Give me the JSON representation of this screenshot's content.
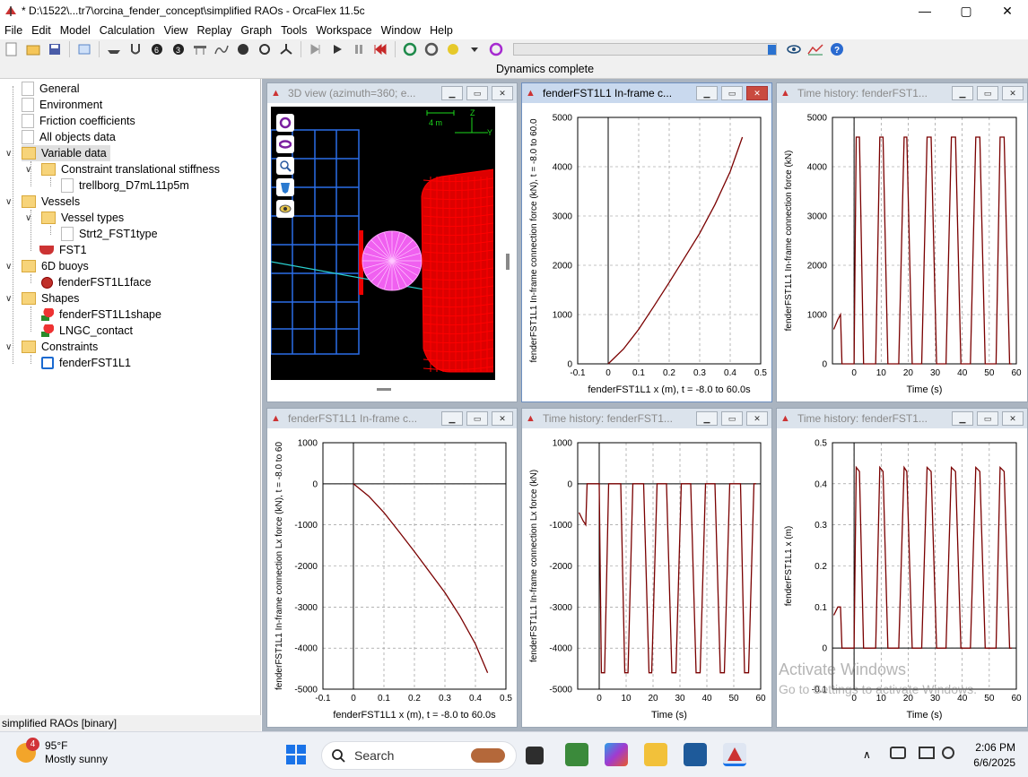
{
  "titlebar": {
    "title": "* D:\\1522\\...tr7\\orcina_fender_concept\\simplified RAOs - OrcaFlex 11.5c",
    "min": "—",
    "max": "▢",
    "close": "✕"
  },
  "menu": [
    "File",
    "Edit",
    "Model",
    "Calculation",
    "View",
    "Replay",
    "Graph",
    "Tools",
    "Workspace",
    "Window",
    "Help"
  ],
  "status": "Dynamics complete",
  "tree": {
    "items": [
      {
        "label": "General"
      },
      {
        "label": "Environment"
      },
      {
        "label": "Friction coefficients"
      },
      {
        "label": "All objects data"
      },
      {
        "label": "Variable data"
      },
      {
        "label": "Constraint translational stiffness"
      },
      {
        "label": "trellborg_D7mL11p5m"
      },
      {
        "label": "Vessels"
      },
      {
        "label": "Vessel types"
      },
      {
        "label": "Strt2_FST1type"
      },
      {
        "label": "FST1"
      },
      {
        "label": "6D buoys"
      },
      {
        "label": "fenderFST1L1face"
      },
      {
        "label": "Shapes"
      },
      {
        "label": "fenderFST1L1shape"
      },
      {
        "label": "LNGC_contact"
      },
      {
        "label": "Constraints"
      },
      {
        "label": "fenderFST1L1"
      }
    ]
  },
  "file_status": "simplified RAOs [binary]",
  "windows": [
    {
      "title": "3D view (azimuth=360; e...",
      "scale_label": "4 m",
      "axis_z": "Z",
      "axis_y": "Y"
    },
    {
      "title": "fenderFST1L1 In-frame c..."
    },
    {
      "title": "Time history: fenderFST1..."
    },
    {
      "title": "fenderFST1L1 In-frame c..."
    },
    {
      "title": "Time history: fenderFST1..."
    },
    {
      "title": "Time history: fenderFST1..."
    }
  ],
  "chart_data": [
    {
      "type": "line",
      "xlabel": "fenderFST1L1 x (m), t = -8.0 to 60.0s",
      "ylabel": "fenderFST1L1 In-frame connection force (kN), t = -8.0 to 60.0",
      "x": [
        0,
        0.05,
        0.1,
        0.15,
        0.2,
        0.25,
        0.3,
        0.35,
        0.4,
        0.44
      ],
      "y": [
        0,
        300,
        700,
        1170,
        1650,
        2150,
        2650,
        3230,
        3900,
        4600
      ],
      "xlim": [
        -0.1,
        0.5
      ],
      "ylim": [
        0,
        5000
      ],
      "xticks": [
        "-0.1",
        "0",
        "0.1",
        "0.2",
        "0.3",
        "0.4",
        "0.5"
      ],
      "yticks": [
        "0",
        "1000",
        "2000",
        "3000",
        "4000",
        "5000"
      ],
      "grid": true
    },
    {
      "type": "line",
      "xlabel": "Time (s)",
      "ylabel": "fenderFST1L1 In-frame connection force (kN)",
      "x": [
        -7.5,
        -6,
        -5,
        -4.5,
        -2,
        0,
        0.8,
        2,
        3.5,
        4.2,
        8,
        9.5,
        10.7,
        12.5,
        13.2,
        16.5,
        18.5,
        19.5,
        21.5,
        22.3,
        25,
        27,
        28.5,
        30.5,
        31.3,
        34,
        36,
        37.5,
        39.5,
        40.3,
        43,
        45,
        46.5,
        48.5,
        49.3,
        52.5,
        54,
        55.5,
        57.5,
        58.3
      ],
      "y": [
        700,
        900,
        1000,
        0,
        0,
        0,
        4600,
        4600,
        0,
        0,
        0,
        4600,
        4600,
        0,
        0,
        0,
        4600,
        4600,
        0,
        0,
        0,
        4600,
        4600,
        0,
        0,
        0,
        4600,
        4600,
        0,
        0,
        0,
        4600,
        4600,
        0,
        0,
        0,
        4600,
        4600,
        0,
        0
      ],
      "xlim": [
        -8,
        60
      ],
      "ylim": [
        0,
        5000
      ],
      "xticks": [
        "0",
        "10",
        "20",
        "30",
        "40",
        "50",
        "60"
      ],
      "yticks": [
        "0",
        "1000",
        "2000",
        "3000",
        "4000",
        "5000"
      ],
      "grid": true
    },
    {
      "type": "line",
      "xlabel": "fenderFST1L1 x (m), t = -8.0 to 60.0s",
      "ylabel": "fenderFST1L1 In-frame connection Lx force (kN), t = -8.0 to 60",
      "x": [
        0,
        0.05,
        0.1,
        0.15,
        0.2,
        0.25,
        0.3,
        0.35,
        0.4,
        0.44
      ],
      "y": [
        0,
        -300,
        -700,
        -1170,
        -1650,
        -2150,
        -2650,
        -3230,
        -3900,
        -4600
      ],
      "xlim": [
        -0.1,
        0.5
      ],
      "ylim": [
        -5000,
        1000
      ],
      "xticks": [
        "-0.1",
        "0",
        "0.1",
        "0.2",
        "0.3",
        "0.4",
        "0.5"
      ],
      "yticks": [
        "-5000",
        "-4000",
        "-3000",
        "-2000",
        "-1000",
        "0",
        "1000"
      ],
      "grid": true
    },
    {
      "type": "line",
      "xlabel": "Time (s)",
      "ylabel": "fenderFST1L1 In-frame connection Lx force (kN)",
      "x": [
        -7.5,
        -6,
        -5,
        -4.5,
        -2,
        0,
        0.8,
        2,
        3.5,
        4.2,
        8,
        9.5,
        10.7,
        12.5,
        13.2,
        16.5,
        18.5,
        19.5,
        21.5,
        22.3,
        25,
        27,
        28.5,
        30.5,
        31.3,
        34,
        36,
        37.5,
        39.5,
        40.3,
        43,
        45,
        46.5,
        48.5,
        49.3,
        52.5,
        54,
        55.5,
        57.5,
        58.3
      ],
      "y": [
        -700,
        -900,
        -1000,
        0,
        0,
        0,
        -4600,
        -4600,
        0,
        0,
        0,
        -4600,
        -4600,
        0,
        0,
        0,
        -4600,
        -4600,
        0,
        0,
        0,
        -4600,
        -4600,
        0,
        0,
        0,
        -4600,
        -4600,
        0,
        0,
        0,
        -4600,
        -4600,
        0,
        0,
        0,
        -4600,
        -4600,
        0,
        0
      ],
      "xlim": [
        -8,
        60
      ],
      "ylim": [
        -5000,
        1000
      ],
      "xticks": [
        "0",
        "10",
        "20",
        "30",
        "40",
        "50",
        "60"
      ],
      "yticks": [
        "-5000",
        "-4000",
        "-3000",
        "-2000",
        "-1000",
        "0",
        "1000"
      ],
      "grid": true
    },
    {
      "type": "line",
      "xlabel": "Time (s)",
      "ylabel": "fenderFST1L1 x (m)",
      "x": [
        -7.5,
        -6,
        -5,
        -4.5,
        -2,
        0,
        0.8,
        2,
        3.5,
        4.2,
        8,
        9.5,
        10.7,
        12.5,
        13.2,
        16.5,
        18.5,
        19.5,
        21.5,
        22.3,
        25,
        27,
        28.5,
        30.5,
        31.3,
        34,
        36,
        37.5,
        39.5,
        40.3,
        43,
        45,
        46.5,
        48.5,
        49.3,
        52.5,
        54,
        55.5,
        57.5,
        58.3
      ],
      "y": [
        0.08,
        0.1,
        0.1,
        0,
        0,
        0,
        0.44,
        0.43,
        0,
        0,
        0,
        0.44,
        0.43,
        0,
        0,
        0,
        0.44,
        0.43,
        0,
        0,
        0,
        0.44,
        0.43,
        0,
        0,
        0,
        0.44,
        0.43,
        0,
        0,
        0,
        0.44,
        0.43,
        0,
        0,
        0,
        0.44,
        0.43,
        0,
        0
      ],
      "xlim": [
        -8,
        60
      ],
      "ylim": [
        -0.1,
        0.5
      ],
      "xticks": [
        "0",
        "10",
        "20",
        "30",
        "40",
        "50",
        "60"
      ],
      "yticks": [
        "-0.1",
        "0",
        "0.1",
        "0.2",
        "0.3",
        "0.4",
        "0.5"
      ],
      "grid": true
    }
  ],
  "watermark": {
    "line1": "Activate Windows",
    "line2": "Go to Settings to activate Windows."
  },
  "taskbar": {
    "weather_temp": "95°F",
    "weather_desc": "Mostly sunny",
    "badge": "4",
    "search": "Search",
    "time": "2:06 PM",
    "date": "6/6/2025"
  }
}
